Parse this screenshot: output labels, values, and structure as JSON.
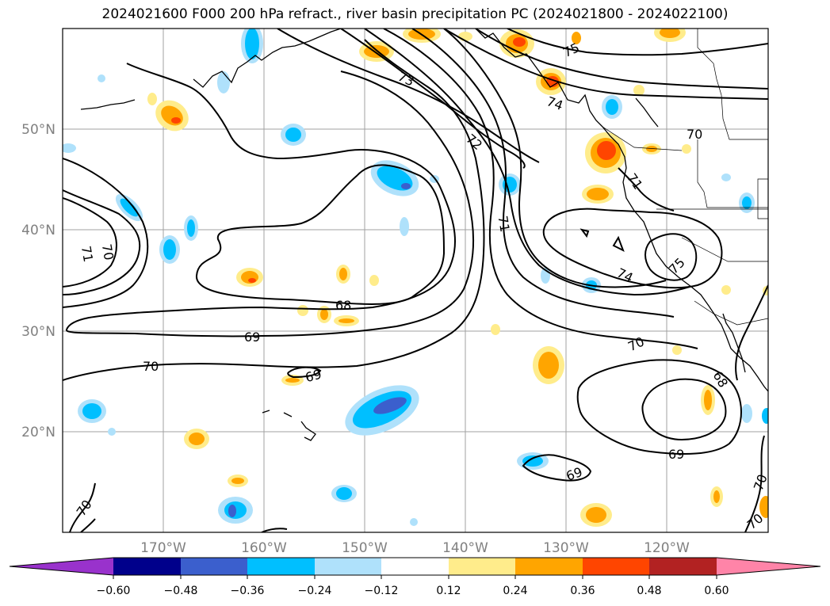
{
  "title": "2024021600 F000 200 hPa refract., river basin precipitation PC (2024021800 - 2024022100)",
  "lat_labels": [
    "50°N",
    "40°N",
    "30°N",
    "20°N"
  ],
  "lon_labels": [
    "170°W",
    "160°W",
    "150°W",
    "140°W",
    "130°W",
    "120°W"
  ],
  "contour_labels": [
    "75",
    "73",
    "74",
    "72",
    "70",
    "71",
    "71",
    "70",
    "71",
    "68",
    "69",
    "70",
    "69",
    "74",
    "75",
    "70",
    "68",
    "69",
    "69",
    "70",
    "70",
    "70"
  ],
  "colorbar": {
    "colors": [
      "#9932cc",
      "#00008b",
      "#3b5fcd",
      "#00bfff",
      "#afe1fb",
      "#ffffff",
      "#ffec8b",
      "#ffa500",
      "#ff4500",
      "#b22222",
      "#ff84a8"
    ],
    "tick_labels": [
      "−0.60",
      "−0.48",
      "−0.36",
      "−0.24",
      "−0.12",
      "0.12",
      "0.24",
      "0.36",
      "0.48",
      "0.60"
    ]
  },
  "colors": {
    "contour": "#000000",
    "grid": "#a0a0a0",
    "positive": "#ffa500",
    "negative": "#00bfff"
  }
}
